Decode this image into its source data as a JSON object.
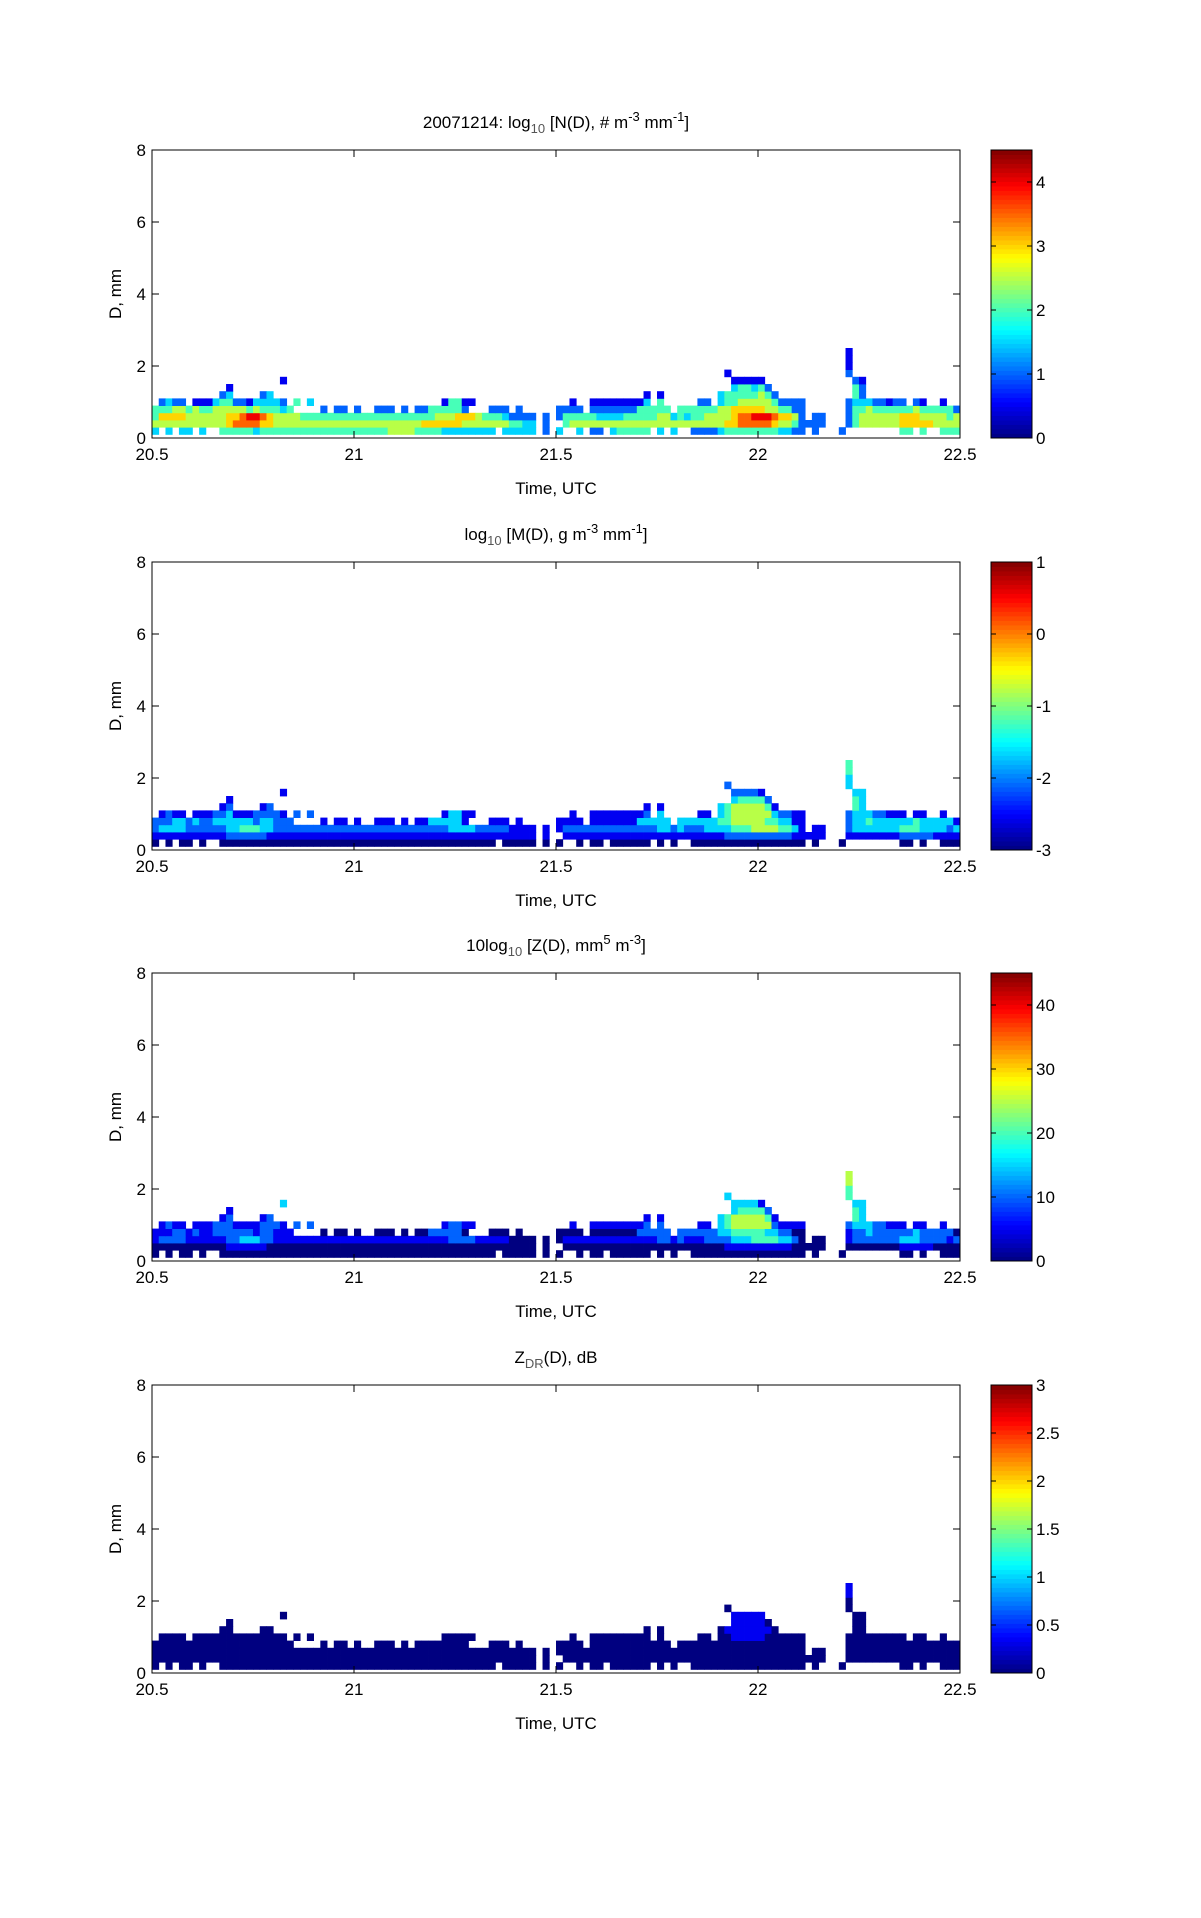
{
  "chart_data": [
    {
      "type": "heatmap",
      "title_parts": [
        {
          "t": "20071214: log",
          "s": ""
        },
        {
          "t": "10",
          "s": "sub"
        },
        {
          "t": " [N(D), # m",
          "s": ""
        },
        {
          "t": "-3",
          "s": "sup"
        },
        {
          "t": " mm",
          "s": ""
        },
        {
          "t": "-1",
          "s": "sup"
        },
        {
          "t": "]",
          "s": ""
        }
      ],
      "xlabel": "Time, UTC",
      "ylabel": "D, mm",
      "xlim": [
        20.5,
        22.5
      ],
      "ylim": [
        0,
        8
      ],
      "xticks": [
        "20.5",
        "21",
        "21.5",
        "22",
        "22.5"
      ],
      "yticks": [
        "0",
        "2",
        "4",
        "6",
        "8"
      ],
      "clim": [
        0,
        4.5
      ],
      "cticks": [
        "0",
        "1",
        "2",
        "3",
        "4"
      ],
      "encoding": "rows bottom-up, D bins of 0.2 mm starting at 0.1 mm; columns are 1-min bins from 20.5 UTC; '.' = no data; digit d = clim[0] + d*(clim[1]-clim[0])/9",
      "rows": [
        [
          "3.3.33.3..",
          "4444434444",
          "4444444444",
          "4444455554",
          "4443333333",
          "3.33333.2.",
          "3..3.22.34",
          "4444.3.3..",
          "2222344444",
          "4443322.2.",
          "..2.......",
          ".44.4..444"
        ],
        [
          "5555555555",
          "5677776655",
          "5555555555",
          "5555555555",
          "6666665555",
          "5554433.2.",
          ".455555555",
          "5555555555",
          "5555566777",
          "7765542222",
          "...2455555",
          "5666665555"
        ],
        [
          "4666655555",
          "5667887655",
          "5544444444",
          "4444444444",
          "4455566654",
          "4432222.2.",
          "2444443333",
          "4444455343",
          "4455556778",
          "8876652.22",
          "...2455555",
          "5666555545"
        ],
        [
          "4445545445",
          "5555454443",
          "4....2.22.",
          "2..222.2.2",
          "2444442...",
          "222.2.....",
          "2222.22222",
          "2244444.44",
          "4444556666",
          "6554422...",
          "...2445444",
          "4445444442"
        ],
        [
          ".2322.1113",
          "4422133332",
          ".4.3......",
          "..........",
          "...14411..",
          "..........",
          "..1..11111",
          "1113.4....",
          ".22.344555",
          "5542222...",
          "...2333221",
          "22.21..1.."
        ],
        [
          "..........",
          "23....23..",
          "..........",
          "..........",
          "..........",
          "..........",
          "..........",
          "...1.1....",
          "....344444",
          "542.......",
          "....42....",
          ".........."
        ],
        [
          "..........",
          ".1........",
          "..........",
          "..........",
          "..........",
          "..........",
          "..........",
          "..........",
          "......3443",
          "42........",
          "....42....",
          ".........."
        ],
        [
          "..........",
          ".........1",
          "..........",
          "..........",
          "..........",
          "..........",
          "..........",
          "..........",
          "......1111",
          "1.........",
          "....21....",
          ".........."
        ],
        [
          "..........",
          "..........",
          "..........",
          "..........",
          "..........",
          "..........",
          "..........",
          "..........",
          ".....1....",
          "..........",
          "...2......",
          ".........."
        ],
        [
          "..........",
          "..........",
          "..........",
          "..........",
          "..........",
          "..........",
          "..........",
          "..........",
          "..........",
          "..........",
          "...1......",
          ".........."
        ],
        [
          "..........",
          "..........",
          "..........",
          "..........",
          "..........",
          "..........",
          "..........",
          "..........",
          "..........",
          "..........",
          "...1......",
          ".........."
        ],
        [
          "..........",
          "..........",
          "..........",
          "..........",
          "..........",
          "..........",
          "..........",
          "..........",
          "..........",
          "..........",
          "...1......",
          ".........."
        ]
      ]
    },
    {
      "type": "heatmap",
      "title_parts": [
        {
          "t": "log",
          "s": ""
        },
        {
          "t": "10",
          "s": "sub"
        },
        {
          "t": " [M(D), g m",
          "s": ""
        },
        {
          "t": "-3",
          "s": "sup"
        },
        {
          "t": " mm",
          "s": ""
        },
        {
          "t": "-1",
          "s": "sup"
        },
        {
          "t": "]",
          "s": ""
        }
      ],
      "xlabel": "Time, UTC",
      "ylabel": "D, mm",
      "xlim": [
        20.5,
        22.5
      ],
      "ylim": [
        0,
        8
      ],
      "xticks": [
        "20.5",
        "21",
        "21.5",
        "22",
        "22.5"
      ],
      "yticks": [
        "0",
        "2",
        "4",
        "6",
        "8"
      ],
      "clim": [
        -3,
        1
      ],
      "cticks": [
        "-3",
        "-2",
        "-1",
        "0",
        "1"
      ],
      "encoding": "rows bottom-up, D bins of 0.2 mm starting at 0.1 mm; columns are 1-min bins from 20.5 UTC; '.' = no data; digit d = clim[0] + d*(clim[1]-clim[0])/9",
      "rows": [
        [
          "0.0.00.0..",
          "0000000000",
          "0000000000",
          "0000000000",
          "0000000000",
          "0.00000.0.",
          "0..0.00.00",
          "0000.0.0..",
          "0000000000",
          "0000000.0.",
          "..0.......",
          ".00.0..000"
        ],
        [
          "1111111111",
          "1222222111",
          "1111111111",
          "1111111111",
          "1111111111",
          "1111111.1.",
          ".111111111",
          "1111111111",
          "1111122222",
          "2222211111",
          "...1111111",
          "1222221111"
        ],
        [
          "2333322222",
          "2334443322",
          "2222222222",
          "2222222222",
          "2222333322",
          "2221111.1.",
          "1222222222",
          "2222233232",
          "2233334445",
          "5554431.11",
          "...2333333",
          "3444333323"
        ],
        [
          "2223323223",
          "3333323322",
          "2....1.11.",
          "1..111.1.1",
          "1333331...",
          "111.1.....",
          "1111.11111",
          "1133333.33",
          "3333445555",
          "5443311...",
          "...2334333",
          "3334333331"
        ],
        [
          ".1211.1112",
          "2311122221",
          ".2.2......",
          "..........",
          "...13311..",
          "..........",
          "..1..11111",
          "1112.3....",
          ".11.345555",
          "5532211...",
          "...2333221",
          "11.11..1.."
        ],
        [
          "..........",
          "12....12..",
          "..........",
          "..........",
          "..........",
          "..........",
          "..........",
          "...1.1....",
          "....345555",
          "541.......",
          "....43....",
          ".........."
        ],
        [
          "..........",
          ".1........",
          "..........",
          "..........",
          "..........",
          "..........",
          "..........",
          "..........",
          "......3444",
          "42........",
          "....43....",
          ".........."
        ],
        [
          "..........",
          ".........1",
          "..........",
          "..........",
          "..........",
          "..........",
          "..........",
          "..........",
          "......2222",
          "1.........",
          "....33....",
          ".........."
        ],
        [
          "..........",
          "..........",
          "..........",
          "..........",
          "..........",
          "..........",
          "..........",
          "..........",
          ".....2....",
          "..........",
          "...3......",
          ".........."
        ],
        [
          "..........",
          "..........",
          "..........",
          "..........",
          "..........",
          "..........",
          "..........",
          "..........",
          "..........",
          "..........",
          "...3......",
          ".........."
        ],
        [
          "..........",
          "..........",
          "..........",
          "..........",
          "..........",
          "..........",
          "..........",
          "..........",
          "..........",
          "..........",
          "...4......",
          ".........."
        ],
        [
          "..........",
          "..........",
          "..........",
          "..........",
          "..........",
          "..........",
          "..........",
          "..........",
          "..........",
          "..........",
          "...4......",
          ".........."
        ]
      ]
    },
    {
      "type": "heatmap",
      "title_parts": [
        {
          "t": "10log",
          "s": ""
        },
        {
          "t": "10",
          "s": "sub"
        },
        {
          "t": " [Z(D),  mm",
          "s": ""
        },
        {
          "t": "5",
          "s": "sup"
        },
        {
          "t": " m",
          "s": ""
        },
        {
          "t": "-3",
          "s": "sup"
        },
        {
          "t": "]",
          "s": ""
        }
      ],
      "xlabel": "Time, UTC",
      "ylabel": "D, mm",
      "xlim": [
        20.5,
        22.5
      ],
      "ylim": [
        0,
        8
      ],
      "xticks": [
        "20.5",
        "21",
        "21.5",
        "22",
        "22.5"
      ],
      "yticks": [
        "0",
        "2",
        "4",
        "6",
        "8"
      ],
      "clim": [
        0,
        45
      ],
      "cticks": [
        "0",
        "10",
        "20",
        "30",
        "40"
      ],
      "encoding": "rows bottom-up, D bins of 0.2 mm starting at 0.1 mm; columns are 1-min bins from 20.5 UTC; '.' = no data; digit d = clim[0] + d*(clim[1]-clim[0])/9",
      "rows": [
        [
          "0.0.00.0..",
          "0000000000",
          "0000000000",
          "0000000000",
          "0000000000",
          "0.00000.0.",
          "0..0.00.00",
          "0000.0.0..",
          "0000000000",
          "0000000.0.",
          "..0.......",
          ".00.0..000"
        ],
        [
          "0000000000",
          "0111111000",
          "0000000000",
          "0000000000",
          "0000000000",
          "0000000.0.",
          ".000000000",
          "0000000000",
          "0000011111",
          "1111100000",
          "...0000000",
          "0111110000"
        ],
        [
          "1222211111",
          "1223332211",
          "1111111111",
          "1111111111",
          "1111222211",
          "1110000.0.",
          "0111111111",
          "1111122121",
          "1122223334",
          "4443320.00",
          "...1222222",
          "2333222212"
        ],
        [
          "1112212112",
          "2222212211",
          "1....0.00.",
          "0..000.0.0",
          "0222220...",
          "000.0.....",
          "0000.00000",
          "0022222.22",
          "2222334444",
          "4332200...",
          "...1223222",
          "2223222220"
        ],
        [
          ".1211.1112",
          "2211112221",
          ".2.2......",
          "..........",
          "...12211..",
          "..........",
          "..1..11111",
          "1112.2....",
          ".11.345555",
          "5521111...",
          "...2333221",
          "11.11..1.."
        ],
        [
          "..........",
          "12....12..",
          "..........",
          "..........",
          "..........",
          "..........",
          "..........",
          "...1.1....",
          "....345555",
          "541.......",
          "....43....",
          ".........."
        ],
        [
          "..........",
          ".1........",
          "..........",
          "..........",
          "..........",
          "..........",
          "..........",
          "..........",
          "......3444",
          "42........",
          "....43....",
          ".........."
        ],
        [
          "..........",
          ".........3",
          "..........",
          "..........",
          "..........",
          "..........",
          "..........",
          "..........",
          "......3333",
          "1.........",
          "....33....",
          ".........."
        ],
        [
          "..........",
          "..........",
          "..........",
          "..........",
          "..........",
          "..........",
          "..........",
          "..........",
          ".....3....",
          "..........",
          "...4......",
          ".........."
        ],
        [
          "..........",
          "..........",
          "..........",
          "..........",
          "..........",
          "..........",
          "..........",
          "..........",
          "..........",
          "..........",
          "...4......",
          ".........."
        ],
        [
          "..........",
          "..........",
          "..........",
          "..........",
          "..........",
          "..........",
          "..........",
          "..........",
          "..........",
          "..........",
          "...5......",
          ".........."
        ],
        [
          "..........",
          "..........",
          "..........",
          "..........",
          "..........",
          "..........",
          "..........",
          "..........",
          "..........",
          "..........",
          "...5......",
          ".........."
        ]
      ]
    },
    {
      "type": "heatmap",
      "title_parts": [
        {
          "t": "Z",
          "s": ""
        },
        {
          "t": "DR",
          "s": "sub"
        },
        {
          "t": "(D), dB",
          "s": ""
        }
      ],
      "xlabel": "Time, UTC",
      "ylabel": "D, mm",
      "xlim": [
        20.5,
        22.5
      ],
      "ylim": [
        0,
        8
      ],
      "xticks": [
        "20.5",
        "21",
        "21.5",
        "22",
        "22.5"
      ],
      "yticks": [
        "0",
        "2",
        "4",
        "6",
        "8"
      ],
      "clim": [
        0,
        3
      ],
      "cticks": [
        "0",
        "0.5",
        "1",
        "1.5",
        "2",
        "2.5",
        "3"
      ],
      "encoding": "rows bottom-up, D bins of 0.2 mm starting at 0.1 mm; columns are 1-min bins from 20.5 UTC; '.' = no data; digit d = clim[0] + d*(clim[1]-clim[0])/9",
      "rows": [
        [
          "0.0.00.0..",
          "0000000000",
          "0000000000",
          "0000000000",
          "0000000000",
          "0.00000.0.",
          "0..0.00.00",
          "0000.0.0..",
          "0000000000",
          "0000000.0.",
          "..0.......",
          ".00.0..000"
        ],
        [
          "0000000000",
          "0000000000",
          "0000000000",
          "0000000000",
          "0000000000",
          "0000000.0.",
          ".000000000",
          "0000000000",
          "0000000000",
          "0000000000",
          "...0000000",
          "0000000000"
        ],
        [
          "0000000000",
          "0000000000",
          "0000000000",
          "0000000000",
          "0000000000",
          "0000000.0.",
          "0000000000",
          "0000000000",
          "0000000000",
          "0000000.00",
          "...0000000",
          "0000000000"
        ],
        [
          "0000000000",
          "0000000000",
          "0....0.00.",
          "0..000.0.0",
          "0000000...",
          "000.0.....",
          "0000.00000",
          "0000000.00",
          "0000000000",
          "0000000...",
          "...0000000",
          "0000000000"
        ],
        [
          ".0000.0000",
          "0000000000",
          ".0.0......",
          "..........",
          "...00000..",
          "..........",
          "..0..00000",
          "0000.0....",
          ".00.001111",
          "1000000...",
          "...0000000",
          "00.00..0.."
        ],
        [
          "..........",
          "00....00..",
          "..........",
          "..........",
          "..........",
          "..........",
          "..........",
          "...0.0....",
          "....011111",
          "110.......",
          "....00....",
          ".........."
        ],
        [
          "..........",
          ".0........",
          "..........",
          "..........",
          "..........",
          "..........",
          "..........",
          "..........",
          "......1111",
          "10........",
          "....00....",
          ".........."
        ],
        [
          "..........",
          ".........0",
          "..........",
          "..........",
          "..........",
          "..........",
          "..........",
          "..........",
          "......1111",
          "1.........",
          "....00....",
          ".........."
        ],
        [
          "..........",
          "..........",
          "..........",
          "..........",
          "..........",
          "..........",
          "..........",
          "..........",
          ".....0....",
          "..........",
          "...0......",
          ".........."
        ],
        [
          "..........",
          "..........",
          "..........",
          "..........",
          "..........",
          "..........",
          "..........",
          "..........",
          "..........",
          "..........",
          "...0......",
          ".........."
        ],
        [
          "..........",
          "..........",
          "..........",
          "..........",
          "..........",
          "..........",
          "..........",
          "..........",
          "..........",
          "..........",
          "...1......",
          ".........."
        ],
        [
          "..........",
          "..........",
          "..........",
          "..........",
          "..........",
          "..........",
          "..........",
          "..........",
          "..........",
          "..........",
          "...1......",
          ".........."
        ]
      ]
    }
  ]
}
